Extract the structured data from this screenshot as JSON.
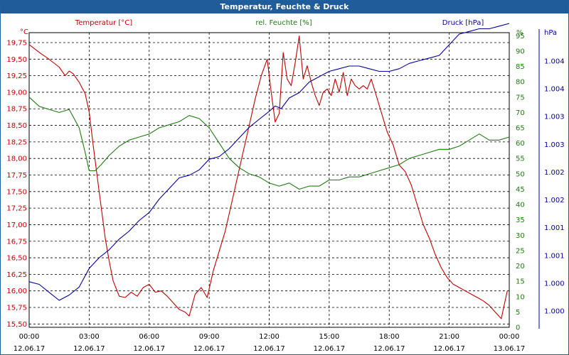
{
  "window": {
    "title": "Temperatur, Feuchte & Druck"
  },
  "colors": {
    "temperature": "#c00000",
    "humidity": "#1f7a10",
    "pressure": "#0000a0",
    "titlebar": "#1f5c99"
  },
  "chart_data": {
    "type": "line",
    "grid": true,
    "x_ticks": [
      {
        "time": "00:00",
        "date": "12.06.17"
      },
      {
        "time": "03:00",
        "date": "12.06.17"
      },
      {
        "time": "06:00",
        "date": "12.06.17"
      },
      {
        "time": "09:00",
        "date": "12.06.17"
      },
      {
        "time": "12:00",
        "date": "12.06.17"
      },
      {
        "time": "15:00",
        "date": "12.06.17"
      },
      {
        "time": "18:00",
        "date": "12.06.17"
      },
      {
        "time": "21:00",
        "date": "12.06.17"
      },
      {
        "time": "00:00",
        "date": "13.06.17"
      }
    ],
    "xlim": [
      0,
      24
    ],
    "axes": {
      "temperature": {
        "label": "Temperatur [°C]",
        "unit": "°C",
        "ylim": [
          15.45,
          19.9
        ],
        "ticks": [
          "19,75",
          "19,50",
          "19,25",
          "19,00",
          "18,75",
          "18,50",
          "18,25",
          "18,00",
          "17,75",
          "17,50",
          "17,25",
          "17,00",
          "16,75",
          "16,50",
          "16,25",
          "16,00",
          "15,75",
          "15,50"
        ]
      },
      "humidity": {
        "label": "rel. Feuchte [%]",
        "unit": "%",
        "ylim": [
          0,
          96
        ],
        "ticks": [
          "95",
          "90",
          "85",
          "80",
          "75",
          "70",
          "65",
          "60",
          "55",
          "50",
          "45",
          "40",
          "35",
          "30",
          "25",
          "20",
          "15",
          "10",
          "5",
          "0"
        ]
      },
      "pressure": {
        "label": "Druck [hPa]",
        "unit": "hPa",
        "ticks": [
          "1.004",
          "1.004",
          "1.003",
          "1.003",
          "1.002",
          "1.002",
          "1.001",
          "1.001",
          "1.000",
          "1.000"
        ]
      }
    },
    "series": [
      {
        "name": "Temperatur [°C]",
        "axis": "temperature",
        "x": [
          0,
          0.3,
          0.6,
          0.9,
          1.2,
          1.5,
          1.8,
          2.0,
          2.2,
          2.5,
          2.8,
          3.0,
          3.2,
          3.5,
          3.8,
          4.0,
          4.2,
          4.5,
          4.8,
          5.1,
          5.4,
          5.7,
          6.0,
          6.3,
          6.6,
          6.9,
          7.2,
          7.5,
          7.8,
          8.0,
          8.3,
          8.6,
          8.9,
          9.2,
          9.5,
          9.8,
          10.1,
          10.4,
          10.7,
          11.0,
          11.3,
          11.6,
          11.9,
          12.1,
          12.3,
          12.5,
          12.7,
          12.9,
          13.1,
          13.3,
          13.5,
          13.7,
          13.9,
          14.1,
          14.3,
          14.5,
          14.7,
          14.9,
          15.1,
          15.3,
          15.5,
          15.7,
          15.9,
          16.1,
          16.3,
          16.5,
          16.7,
          16.9,
          17.1,
          17.3,
          17.5,
          17.7,
          17.9,
          18.2,
          18.5,
          18.8,
          19.1,
          19.4,
          19.7,
          20.0,
          20.3,
          20.6,
          20.9,
          21.2,
          21.5,
          21.8,
          22.1,
          22.4,
          22.7,
          23.0,
          23.3,
          23.6,
          23.9
        ],
        "y": [
          19.72,
          19.65,
          19.58,
          19.52,
          19.45,
          19.38,
          19.25,
          19.32,
          19.28,
          19.15,
          18.98,
          18.7,
          18.2,
          17.5,
          16.8,
          16.45,
          16.15,
          15.92,
          15.9,
          15.98,
          15.92,
          16.05,
          16.1,
          15.98,
          16.0,
          15.92,
          15.82,
          15.72,
          15.68,
          15.62,
          15.95,
          16.05,
          15.9,
          16.3,
          16.6,
          16.9,
          17.3,
          17.7,
          18.1,
          18.5,
          18.9,
          19.25,
          19.5,
          19.0,
          18.55,
          18.68,
          19.6,
          19.2,
          19.1,
          19.45,
          19.85,
          19.2,
          19.4,
          19.15,
          18.95,
          18.8,
          19.0,
          19.05,
          18.95,
          19.2,
          19.0,
          19.3,
          18.95,
          19.2,
          19.1,
          19.05,
          19.1,
          19.05,
          19.2,
          19.0,
          18.8,
          18.6,
          18.4,
          18.2,
          17.9,
          17.8,
          17.6,
          17.3,
          17.0,
          16.8,
          16.55,
          16.35,
          16.2,
          16.1,
          16.05,
          16.0,
          15.95,
          15.9,
          15.85,
          15.78,
          15.68,
          15.58,
          16.0
        ]
      },
      {
        "name": "rel. Feuchte [%]",
        "axis": "humidity",
        "x": [
          0,
          0.5,
          1.0,
          1.5,
          2.0,
          2.5,
          2.8,
          3.0,
          3.3,
          3.6,
          4.0,
          4.5,
          5.0,
          5.5,
          6.0,
          6.5,
          7.0,
          7.5,
          8.0,
          8.5,
          9.0,
          9.5,
          10.0,
          10.5,
          11.0,
          11.5,
          12.0,
          12.5,
          13.0,
          13.5,
          14.0,
          14.5,
          15.0,
          15.5,
          16.0,
          16.5,
          17.0,
          17.5,
          18.0,
          18.5,
          19.0,
          19.5,
          20.0,
          20.5,
          21.0,
          21.5,
          22.0,
          22.5,
          23.0,
          23.5,
          24.0
        ],
        "y": [
          75,
          72,
          71,
          70,
          71,
          65,
          57,
          51,
          51,
          53,
          56,
          59,
          61,
          62,
          63,
          65,
          66,
          67,
          69,
          68,
          65,
          60,
          55,
          52,
          50,
          49,
          47,
          46,
          47,
          45,
          46,
          46,
          48,
          48,
          49,
          49,
          50,
          51,
          52,
          53,
          55,
          56,
          57,
          58,
          58,
          59,
          61,
          63,
          61,
          61,
          62
        ]
      },
      {
        "name": "Druck [hPa]",
        "axis": "pressure",
        "x": [
          0,
          0.5,
          1.0,
          1.5,
          2.0,
          2.5,
          3.0,
          3.5,
          4.0,
          4.5,
          5.0,
          5.5,
          6.0,
          6.5,
          7.0,
          7.5,
          8.0,
          8.5,
          9.0,
          9.5,
          10.0,
          10.5,
          11.0,
          11.5,
          12.0,
          12.3,
          12.6,
          13.0,
          13.5,
          14.0,
          14.5,
          15.0,
          15.5,
          16.0,
          16.5,
          17.0,
          17.5,
          18.0,
          18.5,
          19.0,
          19.5,
          20.0,
          20.5,
          21.0,
          21.5,
          22.0,
          22.5,
          23.0,
          23.5,
          24.0
        ],
        "y": [
          0.11,
          0.1,
          0.07,
          0.04,
          0.06,
          0.09,
          0.16,
          0.2,
          0.23,
          0.27,
          0.3,
          0.34,
          0.37,
          0.42,
          0.46,
          0.5,
          0.51,
          0.53,
          0.57,
          0.58,
          0.61,
          0.65,
          0.69,
          0.72,
          0.75,
          0.77,
          0.76,
          0.8,
          0.82,
          0.86,
          0.88,
          0.9,
          0.91,
          0.92,
          0.92,
          0.91,
          0.9,
          0.9,
          0.91,
          0.93,
          0.94,
          0.95,
          0.96,
          1.0,
          1.04,
          1.05,
          1.06,
          1.06,
          1.07,
          1.08
        ]
      }
    ]
  }
}
